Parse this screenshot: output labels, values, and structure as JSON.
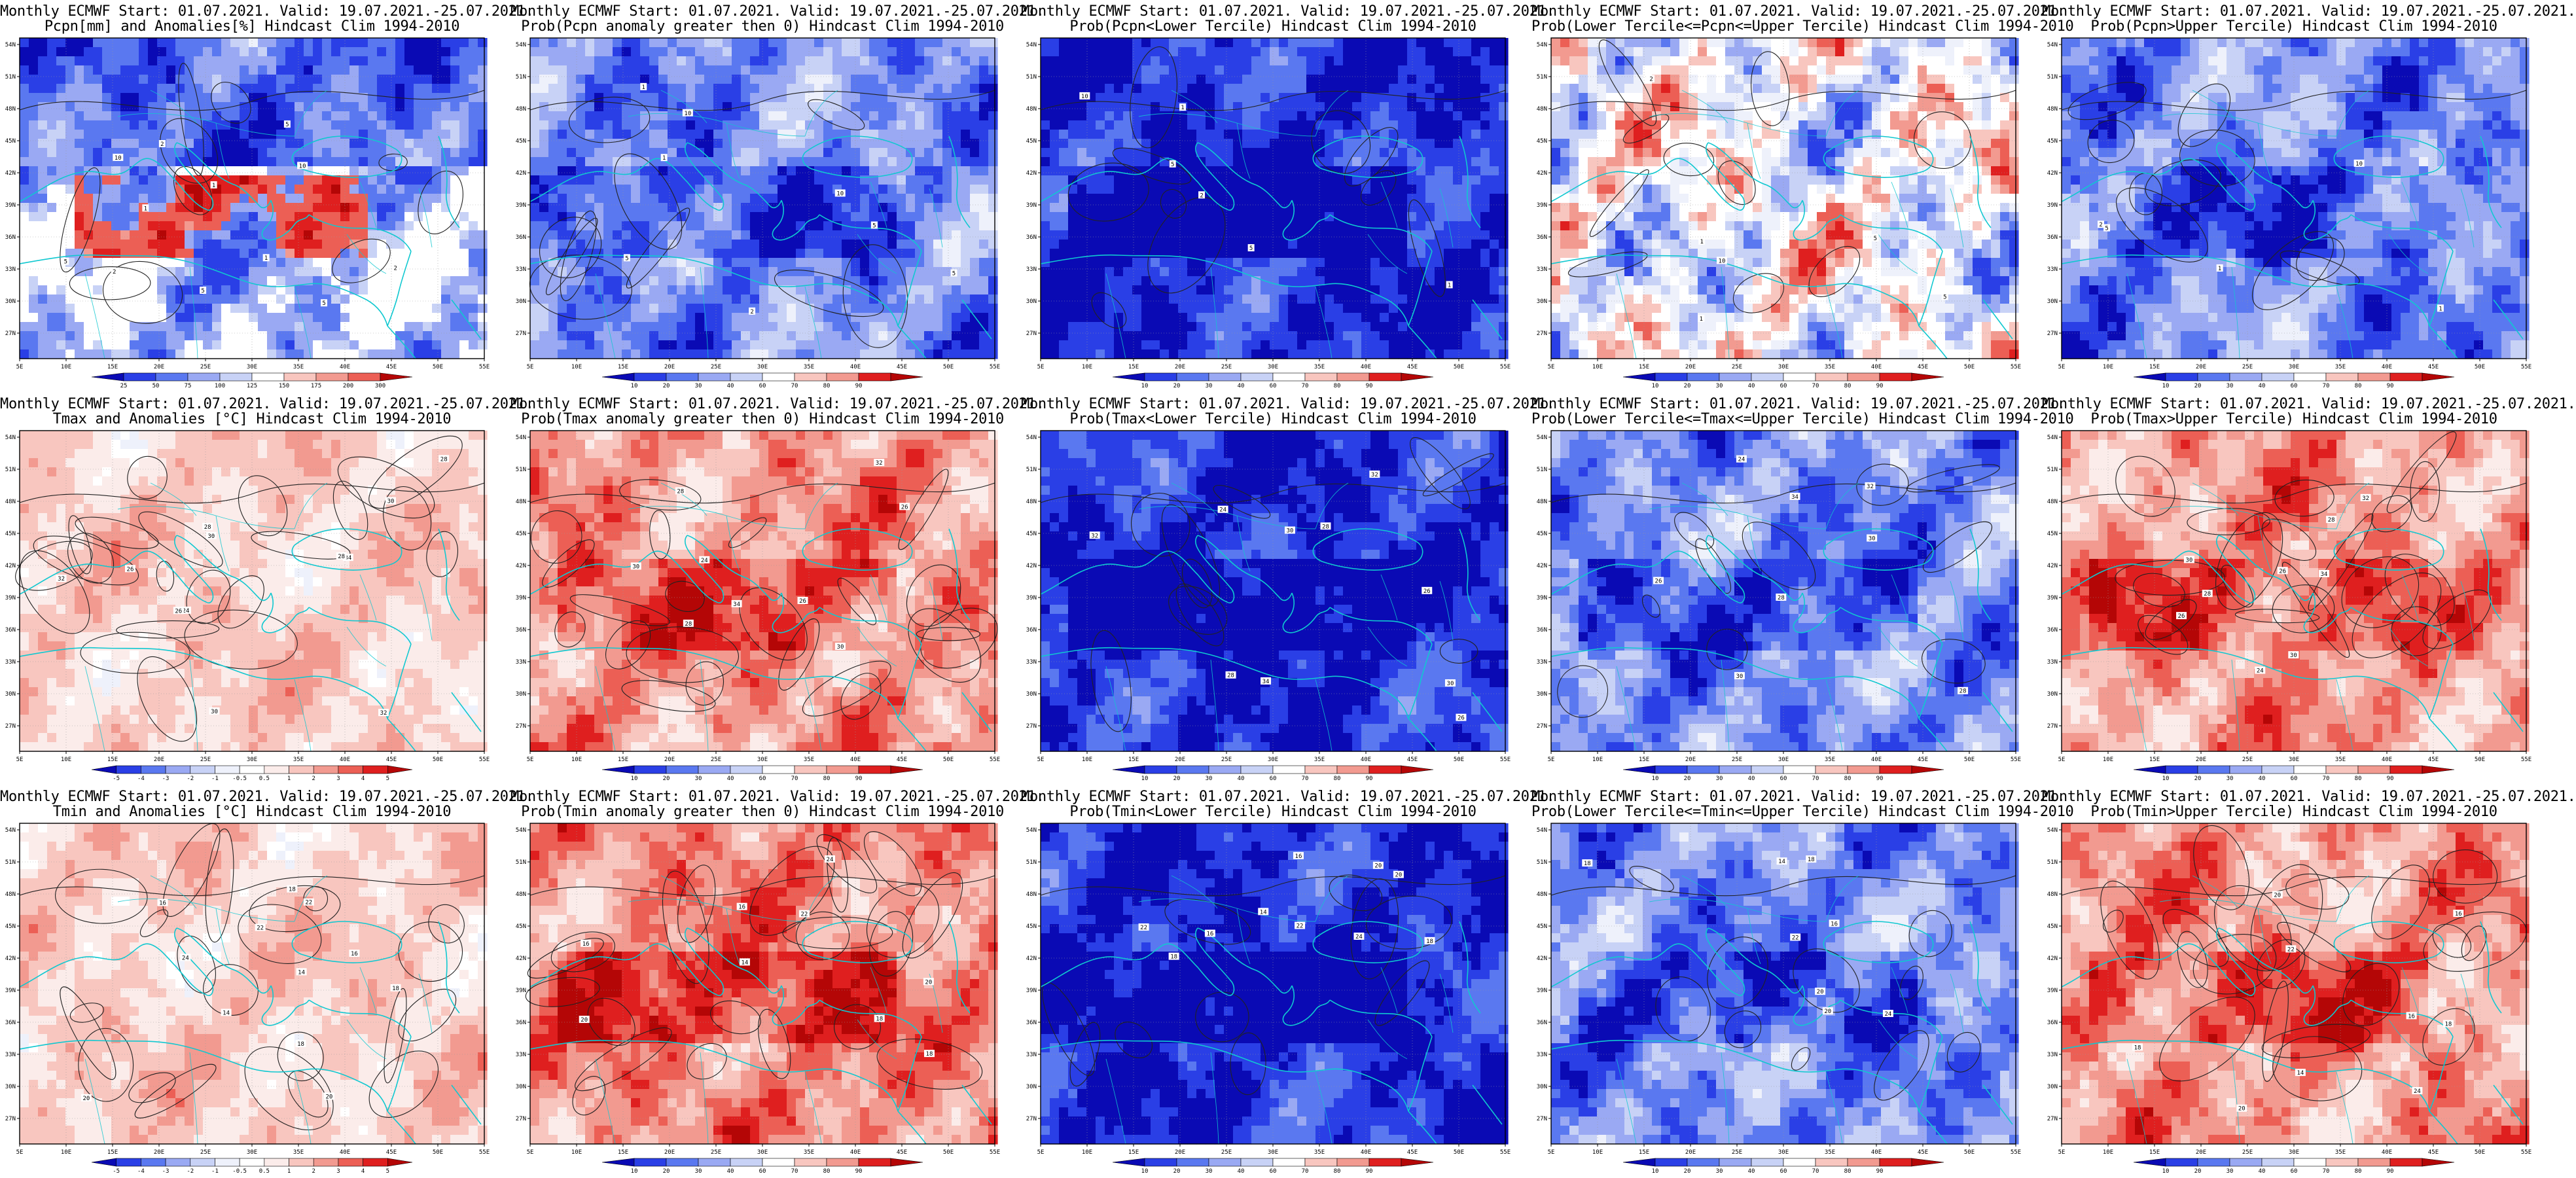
{
  "colors": {
    "blue_scale": [
      "#0a0ab4",
      "#2a3fe6",
      "#5a78f0",
      "#9aa9f3",
      "#c8d2f6",
      "#eef1fb"
    ],
    "red_scale": [
      "#fbecea",
      "#f8c6bf",
      "#f29a90",
      "#ec5f55",
      "#df1f1f",
      "#b40606"
    ],
    "coast": "#10c8d0",
    "contour": "#222222"
  },
  "map": {
    "lon_ticks": [
      "5E",
      "10E",
      "15E",
      "20E",
      "25E",
      "30E",
      "35E",
      "40E",
      "45E",
      "50E",
      "55E"
    ],
    "lat_ticks": [
      "54N",
      "51N",
      "48N",
      "45N",
      "42N",
      "39N",
      "36N",
      "33N",
      "30N",
      "27N"
    ]
  },
  "colorbars": {
    "pcpn_anom": [
      "25",
      "50",
      "75",
      "100",
      "125",
      "150",
      "175",
      "200",
      "300"
    ],
    "prob": [
      "10",
      "20",
      "30",
      "40",
      "60",
      "70",
      "80",
      "90"
    ],
    "temp_anom": [
      "-5",
      "-4",
      "-3",
      "-2",
      "-1",
      "-0.5",
      "0.5",
      "1",
      "2",
      "3",
      "4",
      "5"
    ]
  },
  "panels": [
    {
      "title1": "Monthly ECMWF Start: 01.07.2021. Valid: 19.07.2021.-25.07.2021.",
      "title2": "Pcpn[mm] and Anomalies[%] Hindcast Clim 1994-2010",
      "scheme": "pcpn",
      "cb": "pcpn_anom",
      "labels": [
        "1",
        "2",
        "5",
        "10",
        "5",
        "2",
        "1",
        "5",
        "10",
        "2",
        "5",
        "1"
      ]
    },
    {
      "title1": "Monthly ECMWF Start: 01.07.2021. Valid: 19.07.2021.-25.07.2021.",
      "title2": "Prob(Pcpn anomaly greater then 0) Hindcast Clim 1994-2010",
      "scheme": "blue",
      "cb": "prob",
      "labels": [
        "1",
        "5",
        "10",
        "2",
        "5",
        "1",
        "10",
        "5"
      ]
    },
    {
      "title1": "Monthly ECMWF Start: 01.07.2021. Valid: 19.07.2021.-25.07.2021.",
      "title2": "Prob(Pcpn<Lower Tercile) Hindcast Clim 1994-2010",
      "scheme": "blue_dark",
      "cb": "prob",
      "labels": [
        "1",
        "5",
        "10",
        "2",
        "1",
        "5"
      ]
    },
    {
      "title1": "Monthly ECMWF Start: 01.07.2021. Valid: 19.07.2021.-25.07.2021.",
      "title2": "Prob(Lower Tercile<=Pcpn<=Upper Tercile) Hindcast Clim 1994-2010",
      "scheme": "mixed",
      "cb": "prob",
      "labels": [
        "1",
        "5",
        "10",
        "2",
        "5",
        "1"
      ]
    },
    {
      "title1": "Monthly ECMWF Start: 01.07.2021. Valid: 19.07.2021.-25.07.2021.",
      "title2": "Prob(Pcpn>Upper Tercile) Hindcast Clim 1994-2010",
      "scheme": "blue",
      "cb": "prob",
      "labels": [
        "1",
        "5",
        "10",
        "2",
        "1"
      ]
    },
    {
      "title1": "Monthly ECMWF Start: 01.07.2021. Valid: 19.07.2021.-25.07.2021.",
      "title2": "Tmax and Anomalies [°C] Hindcast Clim 1994-2010",
      "scheme": "red_light",
      "cb": "temp_anom",
      "labels": [
        "24",
        "26",
        "28",
        "30",
        "32",
        "28",
        "30",
        "26",
        "34",
        "30",
        "28",
        "32"
      ]
    },
    {
      "title1": "Monthly ECMWF Start: 01.07.2021. Valid: 19.07.2021.-25.07.2021.",
      "title2": "Prob(Tmax anomaly greater then 0) Hindcast Clim 1994-2010",
      "scheme": "red",
      "cb": "prob",
      "labels": [
        "24",
        "26",
        "28",
        "30",
        "32",
        "34",
        "30",
        "28",
        "26"
      ]
    },
    {
      "title1": "Monthly ECMWF Start: 01.07.2021. Valid: 19.07.2021.-25.07.2021.",
      "title2": "Prob(Tmax<Lower Tercile) Hindcast Clim 1994-2010",
      "scheme": "blue_dark",
      "cb": "prob",
      "labels": [
        "24",
        "26",
        "28",
        "30",
        "32",
        "34",
        "30",
        "28",
        "26",
        "32"
      ]
    },
    {
      "title1": "Monthly ECMWF Start: 01.07.2021. Valid: 19.07.2021.-25.07.2021.",
      "title2": "Prob(Lower Tercile<=Tmax<=Upper Tercile) Hindcast Clim 1994-2010",
      "scheme": "blue",
      "cb": "prob",
      "labels": [
        "24",
        "26",
        "28",
        "30",
        "32",
        "34",
        "30",
        "28"
      ]
    },
    {
      "title1": "Monthly ECMWF Start: 01.07.2021. Valid: 19.07.2021.-25.07.2021.",
      "title2": "Prob(Tmax>Upper Tercile) Hindcast Clim 1994-2010",
      "scheme": "red",
      "cb": "prob",
      "labels": [
        "24",
        "26",
        "28",
        "30",
        "32",
        "34",
        "30",
        "28",
        "26"
      ]
    },
    {
      "title1": "Monthly ECMWF Start: 01.07.2021. Valid: 19.07.2021.-25.07.2021.",
      "title2": "Tmin and Anomalies [°C] Hindcast Clim 1994-2010",
      "scheme": "red_light",
      "cb": "temp_anom",
      "labels": [
        "14",
        "16",
        "18",
        "20",
        "22",
        "18",
        "16",
        "20",
        "24",
        "22",
        "18",
        "14"
      ]
    },
    {
      "title1": "Monthly ECMWF Start: 01.07.2021. Valid: 19.07.2021.-25.07.2021.",
      "title2": "Prob(Tmin anomaly greater then 0) Hindcast Clim 1994-2010",
      "scheme": "red_dark",
      "cb": "prob",
      "labels": [
        "14",
        "16",
        "18",
        "20",
        "22",
        "24",
        "20",
        "18",
        "16"
      ]
    },
    {
      "title1": "Monthly ECMWF Start: 01.07.2021. Valid: 19.07.2021.-25.07.2021.",
      "title2": "Prob(Tmin<Lower Tercile) Hindcast Clim 1994-2010",
      "scheme": "blue_dark",
      "cb": "prob",
      "labels": [
        "14",
        "16",
        "18",
        "20",
        "22",
        "24",
        "20",
        "18",
        "16",
        "22"
      ]
    },
    {
      "title1": "Monthly ECMWF Start: 01.07.2021. Valid: 19.07.2021.-25.07.2021.",
      "title2": "Prob(Lower Tercile<=Tmin<=Upper Tercile) Hindcast Clim 1994-2010",
      "scheme": "blue",
      "cb": "prob",
      "labels": [
        "14",
        "16",
        "18",
        "20",
        "22",
        "24",
        "20",
        "18"
      ]
    },
    {
      "title1": "Monthly ECMWF Start: 01.07.2021. Valid: 19.07.2021.-25.07.2021.",
      "title2": "Prob(Tmin>Upper Tercile) Hindcast Clim 1994-2010",
      "scheme": "red",
      "cb": "prob",
      "labels": [
        "14",
        "16",
        "18",
        "20",
        "22",
        "24",
        "20",
        "18",
        "16"
      ]
    }
  ]
}
